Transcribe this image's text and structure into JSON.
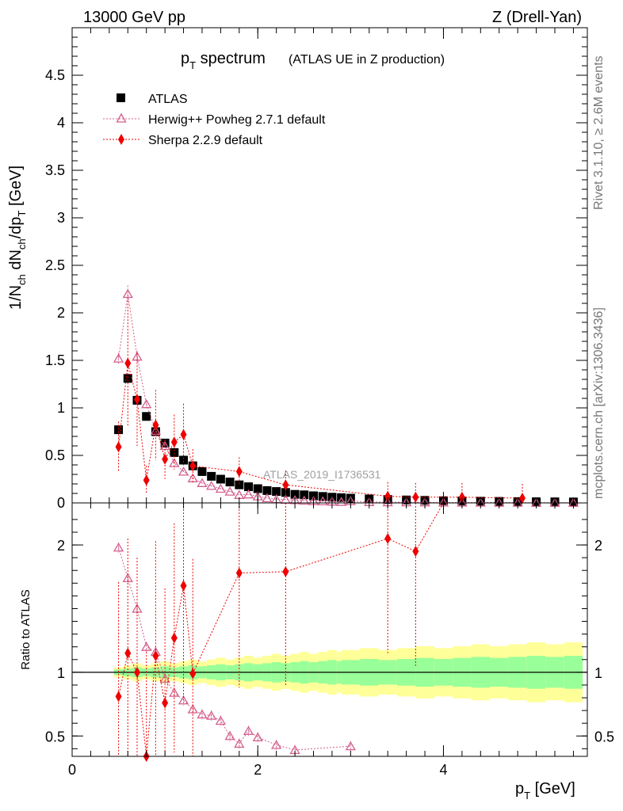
{
  "header": {
    "left": "13000 GeV pp",
    "right": "Z (Drell-Yan)"
  },
  "title": {
    "main_p": "p",
    "main_sub": "T",
    "main_rest": " spectrum",
    "paren": "(ATLAS UE in Z production)"
  },
  "side_texts": {
    "rivet": "Rivet 3.1.10, ≥ 2.6M events",
    "mcplots": "mcplots.cern.ch [arXiv:1306.3436]"
  },
  "watermark": "ATLAS_2019_I1736531",
  "axes": {
    "ylabel_top": "1/N_ch dN_ch/dp_T [GeV]",
    "ylabel_bottom": "Ratio to ATLAS",
    "xlabel": "p_T [GeV]"
  },
  "legend": [
    {
      "label": "ATLAS",
      "marker": "square",
      "color": "#000000"
    },
    {
      "label": "Herwig++ Powheg 2.7.1 default",
      "marker": "triangle",
      "color": "#d35f8d"
    },
    {
      "label": "Sherpa 2.2.9 default",
      "marker": "diamond",
      "color": "#ee0000"
    }
  ],
  "chart_data": [
    {
      "type": "scatter",
      "panel": "main",
      "xlim": [
        0,
        5.55
      ],
      "ylim": [
        0,
        5
      ],
      "x_ticks": [
        "0",
        "2",
        "4"
      ],
      "y_ticks": [
        "0",
        "0.5",
        "1",
        "1.5",
        "2",
        "2.5",
        "3",
        "3.5",
        "4",
        "4.5"
      ],
      "series": [
        {
          "name": "ATLAS",
          "x": [
            0.5,
            0.6,
            0.7,
            0.8,
            0.9,
            1.0,
            1.1,
            1.2,
            1.3,
            1.4,
            1.5,
            1.6,
            1.7,
            1.8,
            1.9,
            2.0,
            2.1,
            2.2,
            2.3,
            2.4,
            2.5,
            2.6,
            2.7,
            2.8,
            2.9,
            3.0,
            3.2,
            3.4,
            3.6,
            3.8,
            4.0,
            4.2,
            4.4,
            4.6,
            4.8,
            5.0,
            5.2,
            5.4
          ],
          "y": [
            0.77,
            1.31,
            1.08,
            0.91,
            0.75,
            0.63,
            0.53,
            0.45,
            0.39,
            0.33,
            0.28,
            0.25,
            0.22,
            0.19,
            0.17,
            0.15,
            0.13,
            0.12,
            0.11,
            0.09,
            0.085,
            0.075,
            0.068,
            0.06,
            0.055,
            0.05,
            0.042,
            0.036,
            0.031,
            0.027,
            0.023,
            0.02,
            0.018,
            0.016,
            0.014,
            0.012,
            0.011,
            0.01
          ]
        },
        {
          "name": "Herwig++ Powheg 2.7.1 default",
          "x": [
            0.5,
            0.6,
            0.7,
            0.8,
            0.9,
            1.0,
            1.1,
            1.2,
            1.3,
            1.4,
            1.5,
            1.6,
            1.7,
            1.8,
            1.9,
            2.0,
            2.1,
            2.2,
            2.3,
            2.4,
            2.5,
            2.6,
            2.7,
            2.8,
            2.9,
            3.0,
            3.2,
            3.4,
            3.6,
            3.8,
            4.0,
            4.2,
            4.4,
            4.6,
            4.8,
            5.0,
            5.2,
            5.4
          ],
          "y": [
            1.52,
            2.2,
            1.54,
            1.04,
            0.76,
            0.6,
            0.42,
            0.33,
            0.26,
            0.21,
            0.18,
            0.15,
            0.12,
            0.085,
            0.09,
            0.07,
            0.05,
            0.04,
            0.035,
            0.03,
            0.025,
            0.02,
            0.018,
            0.015,
            0.012,
            0.02,
            0.01,
            0.008,
            0.007,
            0.006,
            0.005,
            0.004,
            0.004,
            0.003,
            0.003,
            0.002,
            0.002,
            0.002
          ]
        },
        {
          "name": "Sherpa 2.2.9 default",
          "x": [
            0.5,
            0.6,
            0.7,
            0.8,
            0.9,
            1.0,
            1.1,
            1.2,
            1.3,
            1.8,
            2.3,
            3.4,
            3.7,
            4.2,
            4.85
          ],
          "y": [
            0.59,
            1.47,
            1.09,
            0.24,
            0.82,
            0.46,
            0.64,
            0.72,
            0.39,
            0.33,
            0.19,
            0.07,
            0.06,
            0.06,
            0.05
          ]
        }
      ]
    },
    {
      "type": "scatter",
      "panel": "ratio",
      "ylabel": "Ratio to ATLAS",
      "xlim": [
        0,
        5.55
      ],
      "ylim": [
        0.34,
        2.33
      ],
      "y_ticks": [
        "0.5",
        "1",
        "2"
      ],
      "reference_line": 1,
      "series": [
        {
          "name": "Herwig++ Powheg 2.7.1 default",
          "x": [
            0.5,
            0.6,
            0.7,
            0.8,
            0.9,
            1.0,
            1.1,
            1.2,
            1.3,
            1.4,
            1.5,
            1.6,
            1.7,
            1.8,
            1.9,
            2.0,
            2.2,
            2.4,
            3.0
          ],
          "y": [
            1.98,
            1.74,
            1.5,
            1.2,
            1.16,
            0.95,
            0.84,
            0.78,
            0.71,
            0.67,
            0.66,
            0.62,
            0.5,
            0.44,
            0.54,
            0.49,
            0.43,
            0.39,
            0.42
          ]
        },
        {
          "name": "Sherpa 2.2.9 default",
          "x": [
            0.5,
            0.6,
            0.7,
            0.8,
            0.9,
            1.0,
            1.1,
            1.2,
            1.3,
            1.8,
            2.3,
            3.4,
            3.7
          ],
          "y": [
            0.81,
            1.15,
            1.0,
            0.26,
            1.13,
            0.76,
            1.27,
            1.68,
            0.99,
            1.78,
            1.79,
            2.05,
            1.95
          ]
        }
      ]
    }
  ]
}
